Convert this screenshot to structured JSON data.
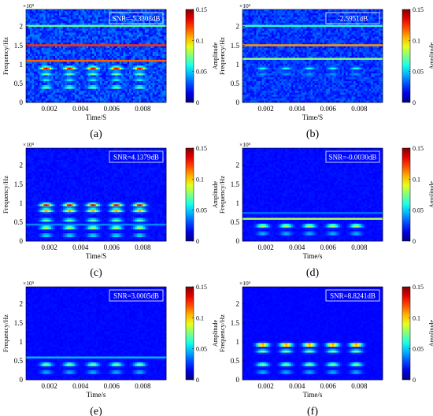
{
  "chart_data": [
    {
      "type": "heatmap",
      "panel_label": "(a)",
      "snr_label": "SNR=-5.3308dB",
      "xlabel": "Time/S",
      "ylabel": "Frequency/Hz",
      "y_exponent": "×10⁵",
      "colorbar_label": "Amplitude",
      "xlim": [
        0.0005,
        0.0095
      ],
      "ylim": [
        0,
        2.45
      ],
      "x_ticks": [
        "0.002",
        "0.004",
        "0.006",
        "0.008"
      ],
      "y_ticks": [
        "0",
        "0.5",
        "1",
        "1.5",
        "2"
      ],
      "colorbar_ticks": [
        "0",
        "0.05",
        "0.1",
        "0.15"
      ],
      "colorbar_range": [
        0,
        0.15
      ],
      "pulse_times": [
        0.0018,
        0.0033,
        0.0048,
        0.0063,
        0.0078
      ],
      "pulse_bands": [
        {
          "freq": 0.9,
          "amplitude": 0.14
        },
        {
          "freq": 0.75,
          "amplitude": 0.07
        },
        {
          "freq": 0.6,
          "amplitude": 0.05
        },
        {
          "freq": 0.4,
          "amplitude": 0.07
        }
      ],
      "lines": [
        {
          "freq": 2.0,
          "amplitude": 0.15
        },
        {
          "freq": 1.5,
          "amplitude": 0.14
        },
        {
          "freq": 1.1,
          "amplitude": 0.12
        }
      ],
      "noise": 0.025
    },
    {
      "type": "heatmap",
      "panel_label": "(b)",
      "snr_label": "-2.5951dB",
      "xlabel": "Time/S",
      "ylabel": "Frequency/Hz",
      "y_exponent": "×10⁵",
      "colorbar_label": "Amplitude",
      "xlim": [
        0.0005,
        0.0095
      ],
      "ylim": [
        0,
        2.45
      ],
      "x_ticks": [
        "0.002",
        "0.004",
        "0.006",
        "0.008"
      ],
      "y_ticks": [
        "0",
        "0.5",
        "1",
        "1.5",
        "2"
      ],
      "colorbar_ticks": [
        "0",
        "0.05",
        "0.1",
        "0.15"
      ],
      "colorbar_range": [
        0,
        0.15
      ],
      "pulse_times": [
        0.0018,
        0.0033,
        0.0048,
        0.0063,
        0.0078
      ],
      "pulse_bands": [
        {
          "freq": 0.9,
          "amplitude": 0.05
        },
        {
          "freq": 0.75,
          "amplitude": 0.03
        }
      ],
      "lines": [
        {
          "freq": 2.0,
          "amplitude": 0.13
        },
        {
          "freq": 1.5,
          "amplitude": 0.12
        },
        {
          "freq": 1.15,
          "amplitude": 0.07
        }
      ],
      "noise": 0.02
    },
    {
      "type": "heatmap",
      "panel_label": "(c)",
      "snr_label": "SNR=4.1379dB",
      "xlabel": "Time/S",
      "ylabel": "Frequency/Hz",
      "y_exponent": "×10⁵",
      "colorbar_label": "Amplitude",
      "xlim": [
        0.0005,
        0.0095
      ],
      "ylim": [
        0,
        2.45
      ],
      "x_ticks": [
        "0.002",
        "0.004",
        "0.006",
        "0.008"
      ],
      "y_ticks": [
        "0",
        "0.5",
        "1",
        "1.5",
        "2"
      ],
      "colorbar_ticks": [
        "0",
        "0.05",
        "0.1",
        "0.15"
      ],
      "colorbar_range": [
        0,
        0.15
      ],
      "pulse_times": [
        0.0018,
        0.0033,
        0.0048,
        0.0063,
        0.0078
      ],
      "pulse_bands": [
        {
          "freq": 0.95,
          "amplitude": 0.14
        },
        {
          "freq": 0.8,
          "amplitude": 0.11
        },
        {
          "freq": 0.55,
          "amplitude": 0.07
        },
        {
          "freq": 0.35,
          "amplitude": 0.09
        },
        {
          "freq": 0.15,
          "amplitude": 0.05
        }
      ],
      "lines": [
        {
          "freq": 0.45,
          "amplitude": 0.06
        }
      ],
      "noise": 0.006
    },
    {
      "type": "heatmap",
      "panel_label": "(d)",
      "snr_label": "SNR=-0.0030dB",
      "xlabel": "Time/s",
      "ylabel": "Frequency/Hz",
      "y_exponent": "×10⁵",
      "colorbar_label": "Amplitude",
      "xlim": [
        0.0005,
        0.0095
      ],
      "ylim": [
        0,
        2.45
      ],
      "x_ticks": [
        "0.002",
        "0.004",
        "0.006",
        "0.008"
      ],
      "y_ticks": [
        "0",
        "0.5",
        "1",
        "1.5",
        "2"
      ],
      "colorbar_ticks": [
        "0",
        "0.05",
        "0.1",
        "0.15"
      ],
      "colorbar_range": [
        0,
        0.15
      ],
      "pulse_times": [
        0.0018,
        0.0033,
        0.0048,
        0.0063,
        0.0078
      ],
      "pulse_bands": [
        {
          "freq": 0.4,
          "amplitude": 0.09
        },
        {
          "freq": 0.2,
          "amplitude": 0.04
        }
      ],
      "lines": [
        {
          "freq": 0.72,
          "amplitude": 0.08
        },
        {
          "freq": 0.58,
          "amplitude": 0.09
        }
      ],
      "noise": 0.005
    },
    {
      "type": "heatmap",
      "panel_label": "(e)",
      "snr_label": "SNR=3.0005dB",
      "xlabel": "Time/s",
      "ylabel": "Frequency/Hz",
      "y_exponent": "×10⁵",
      "colorbar_label": "Amplitude",
      "xlim": [
        0.0005,
        0.0095
      ],
      "ylim": [
        0,
        2.45
      ],
      "x_ticks": [
        "0.002",
        "0.004",
        "0.006",
        "0.008"
      ],
      "y_ticks": [
        "0",
        "0.5",
        "1",
        "1.5",
        "2"
      ],
      "colorbar_ticks": [
        "0",
        "0.05",
        "0.1",
        "0.15"
      ],
      "colorbar_range": [
        0,
        0.15
      ],
      "pulse_times": [
        0.0018,
        0.0033,
        0.0048,
        0.0063,
        0.0078
      ],
      "pulse_bands": [
        {
          "freq": 0.4,
          "amplitude": 0.08
        },
        {
          "freq": 0.2,
          "amplitude": 0.04
        }
      ],
      "lines": [
        {
          "freq": 0.57,
          "amplitude": 0.09
        }
      ],
      "noise": 0.004
    },
    {
      "type": "heatmap",
      "panel_label": "(f)",
      "snr_label": "SNR=8.8241dB",
      "xlabel": "Time/s",
      "ylabel": "Frequency/Hz",
      "y_exponent": "×10⁵",
      "colorbar_label": "Amplitude",
      "xlim": [
        0.0005,
        0.0095
      ],
      "ylim": [
        0,
        2.45
      ],
      "x_ticks": [
        "0.002",
        "0.004",
        "0.006",
        "0.008"
      ],
      "y_ticks": [
        "0",
        "0.5",
        "1",
        "1.5",
        "2"
      ],
      "colorbar_ticks": [
        "0",
        "0.05",
        "0.1",
        "0.15"
      ],
      "colorbar_range": [
        0,
        0.15
      ],
      "pulse_times": [
        0.0018,
        0.0033,
        0.0048,
        0.0063,
        0.0078
      ],
      "pulse_bands": [
        {
          "freq": 0.92,
          "amplitude": 0.14
        },
        {
          "freq": 0.75,
          "amplitude": 0.07
        },
        {
          "freq": 0.4,
          "amplitude": 0.08
        },
        {
          "freq": 0.2,
          "amplitude": 0.04
        }
      ],
      "lines": [],
      "noise": 0.003
    }
  ]
}
